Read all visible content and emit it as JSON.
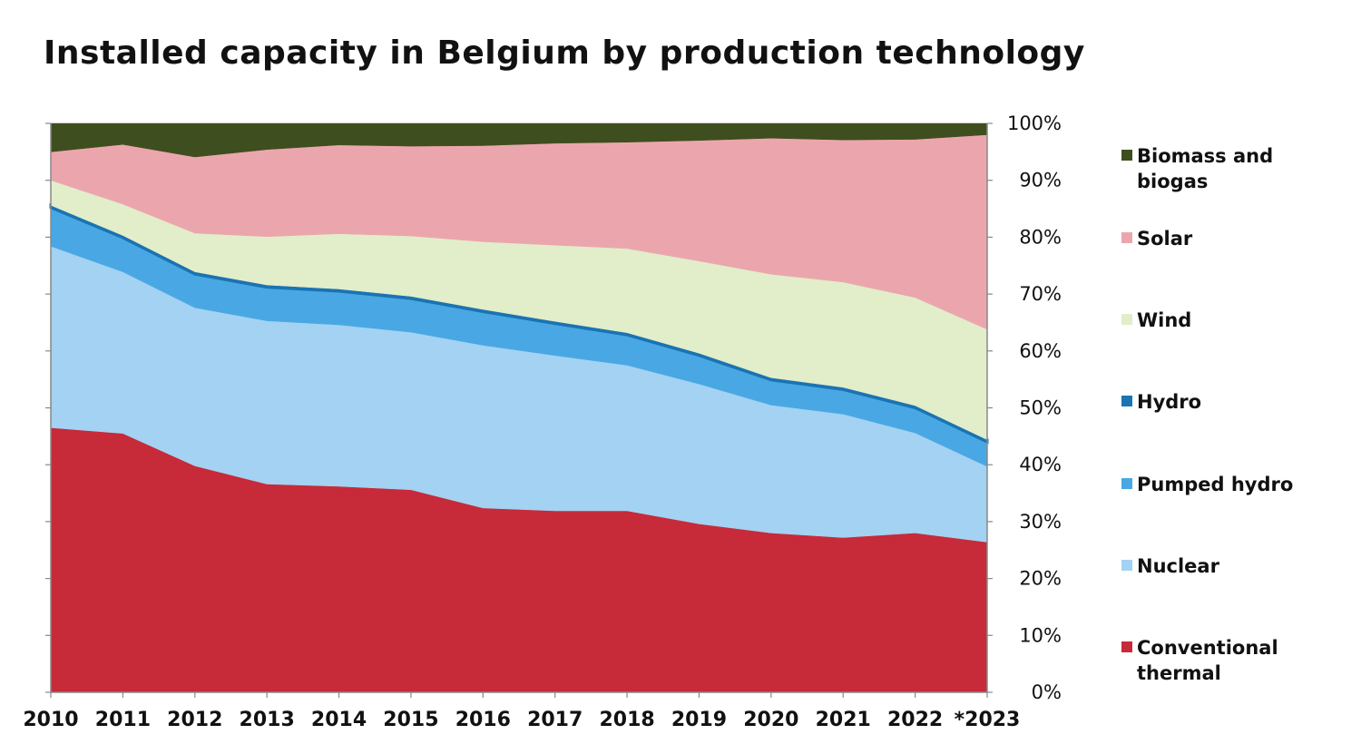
{
  "chart_data": {
    "type": "area",
    "stacked": true,
    "normalized": true,
    "title": "Installed capacity in Belgium by production technology",
    "x": [
      "2010",
      "2011",
      "2012",
      "2013",
      "2014",
      "2015",
      "2016",
      "2017",
      "2018",
      "2019",
      "2020",
      "2021",
      "2022",
      "*2023"
    ],
    "y_axis_position": "right",
    "ylim": [
      0,
      100
    ],
    "y_ticks": [
      "0%",
      "10%",
      "20%",
      "30%",
      "40%",
      "50%",
      "60%",
      "70%",
      "80%",
      "90%",
      "100%"
    ],
    "grid": false,
    "legend_position": "right",
    "series": [
      {
        "name": "Conventional thermal",
        "color": "#c72a38",
        "values": [
          46.5,
          45.5,
          39.8,
          36.6,
          36.2,
          35.6,
          32.4,
          31.9,
          31.9,
          29.6,
          28.0,
          27.2,
          28.0,
          26.4
        ]
      },
      {
        "name": "Nuclear",
        "color": "#a3d2f2",
        "values": [
          31.9,
          28.4,
          27.8,
          28.7,
          28.4,
          27.7,
          28.6,
          27.3,
          25.6,
          24.6,
          22.5,
          21.7,
          17.6,
          13.3
        ]
      },
      {
        "name": "Pumped hydro",
        "color": "#49a8e4",
        "values": [
          6.8,
          6.0,
          5.9,
          5.9,
          5.9,
          5.9,
          5.9,
          5.6,
          5.3,
          5.0,
          4.4,
          4.3,
          4.4,
          4.3
        ]
      },
      {
        "name": "Hydro",
        "color": "#1a73b2",
        "values": [
          0.4,
          0.4,
          0.4,
          0.4,
          0.4,
          0.4,
          0.4,
          0.4,
          0.4,
          0.4,
          0.4,
          0.4,
          0.4,
          0.4
        ]
      },
      {
        "name": "Wind",
        "color": "#e2edca",
        "values": [
          4.4,
          5.5,
          6.8,
          8.5,
          9.7,
          10.6,
          11.9,
          13.4,
          14.8,
          16.2,
          18.2,
          18.5,
          19.0,
          19.4
        ]
      },
      {
        "name": "Solar",
        "color": "#eba6ad",
        "values": [
          5.0,
          10.5,
          13.4,
          15.3,
          15.6,
          15.8,
          16.9,
          17.9,
          18.7,
          21.2,
          23.9,
          25.0,
          27.8,
          34.2
        ]
      },
      {
        "name": "Biomass and biogas",
        "color": "#3f4e1f",
        "values": [
          5.0,
          3.7,
          5.9,
          4.6,
          3.8,
          4.0,
          3.9,
          3.5,
          3.3,
          3.0,
          2.6,
          2.9,
          2.8,
          2.0
        ]
      }
    ]
  }
}
